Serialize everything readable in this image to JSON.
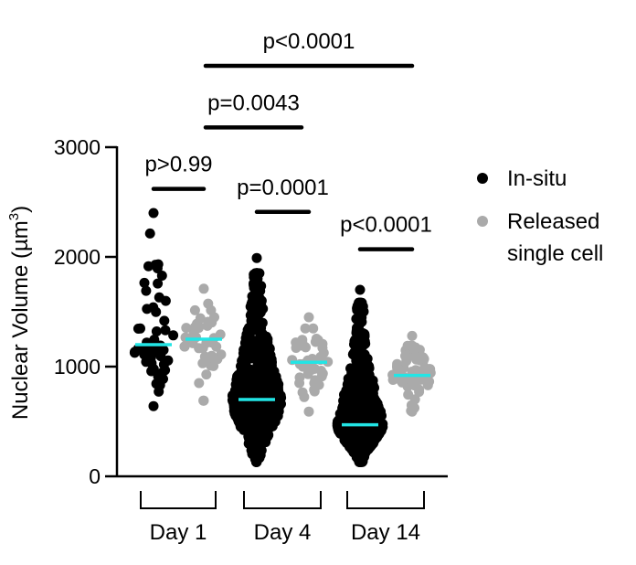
{
  "chart_data": {
    "type": "scatter",
    "title": "",
    "xlabel": "",
    "ylabel": "Nuclear Volume (µm",
    "ylabel_superscript": "3",
    "ylabel_close": ")",
    "ylim": [
      0,
      3000
    ],
    "yticks": [
      0,
      1000,
      2000,
      3000
    ],
    "ytick_labels": [
      "0",
      "1000",
      "2000",
      "3000"
    ],
    "grid": false,
    "legend_position": "right",
    "categories": [
      "Day 1",
      "Day 4",
      "Day 14"
    ],
    "series": [
      {
        "name": "In-situ",
        "color": "#000000",
        "groups": [
          {
            "category": "Day 1",
            "median": 1200,
            "min": 640,
            "max": 2400,
            "n_approx": 60
          },
          {
            "category": "Day 4",
            "median": 700,
            "min": 130,
            "max": 1990,
            "n_approx": 900
          },
          {
            "category": "Day 14",
            "median": 470,
            "min": 130,
            "max": 1700,
            "n_approx": 2500
          }
        ]
      },
      {
        "name": "Released",
        "name_line2": "single cell",
        "color": "#aaaaaa",
        "groups": [
          {
            "category": "Day 1",
            "median": 1250,
            "min": 690,
            "max": 1710,
            "n_approx": 40
          },
          {
            "category": "Day 4",
            "median": 1040,
            "min": 590,
            "max": 1450,
            "n_approx": 40
          },
          {
            "category": "Day 14",
            "median": 920,
            "min": 590,
            "max": 1280,
            "n_approx": 70
          }
        ]
      }
    ],
    "median_color": "#22e5e5",
    "annotations": [
      {
        "label": "p>0.99",
        "from": "Day 1 In-situ",
        "to": "Day 1 Released",
        "level": 2620
      },
      {
        "label": "p=0.0001",
        "from": "Day 4 In-situ",
        "to": "Day 4 Released",
        "level": 2410
      },
      {
        "label": "p<0.0001",
        "from": "Day 14 In-situ",
        "to": "Day 14 Released",
        "level": 2070
      },
      {
        "label": "p=0.0043",
        "from": "Day 1 Released",
        "to": "Day 4 Released",
        "level": 3180
      },
      {
        "label": "p<0.0001",
        "from": "Day 1 Released",
        "to": "Day 14 Released",
        "level": 3750
      }
    ]
  }
}
